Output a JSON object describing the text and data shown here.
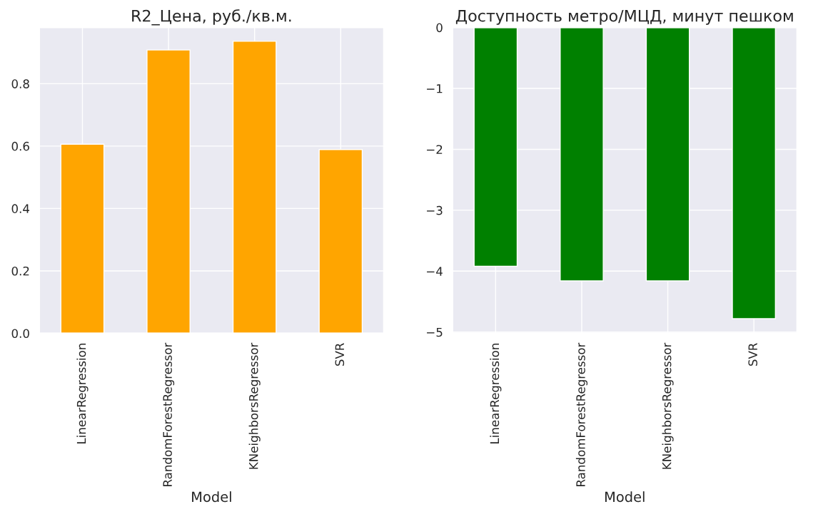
{
  "chart_data": [
    {
      "type": "bar",
      "title": "R2_Цена, руб./кв.м.",
      "xlabel": "Model",
      "categories": [
        "LinearRegression",
        "RandomForestRegressor",
        "KNeighborsRegressor",
        "SVR"
      ],
      "values": [
        0.606,
        0.908,
        0.936,
        0.589
      ],
      "color": "#ffa500",
      "ylim": [
        0,
        0.98
      ],
      "yticks": [
        {
          "value": 0,
          "label": "0.0"
        },
        0.2,
        0.4,
        0.6,
        0.8
      ],
      "grid": true
    },
    {
      "type": "bar",
      "title": "Доступность метро/МЦД, минут пешком",
      "xlabel": "Model",
      "categories": [
        "LinearRegression",
        "RandomForestRegressor",
        "KNeighborsRegressor",
        "SVR"
      ],
      "values": [
        -3.92,
        -4.16,
        -4.16,
        -4.78
      ],
      "color": "#008000",
      "ylim": [
        -5.02,
        0
      ],
      "yticks": [
        -5,
        -4,
        -3,
        -2,
        -1,
        0
      ],
      "grid": true
    }
  ]
}
